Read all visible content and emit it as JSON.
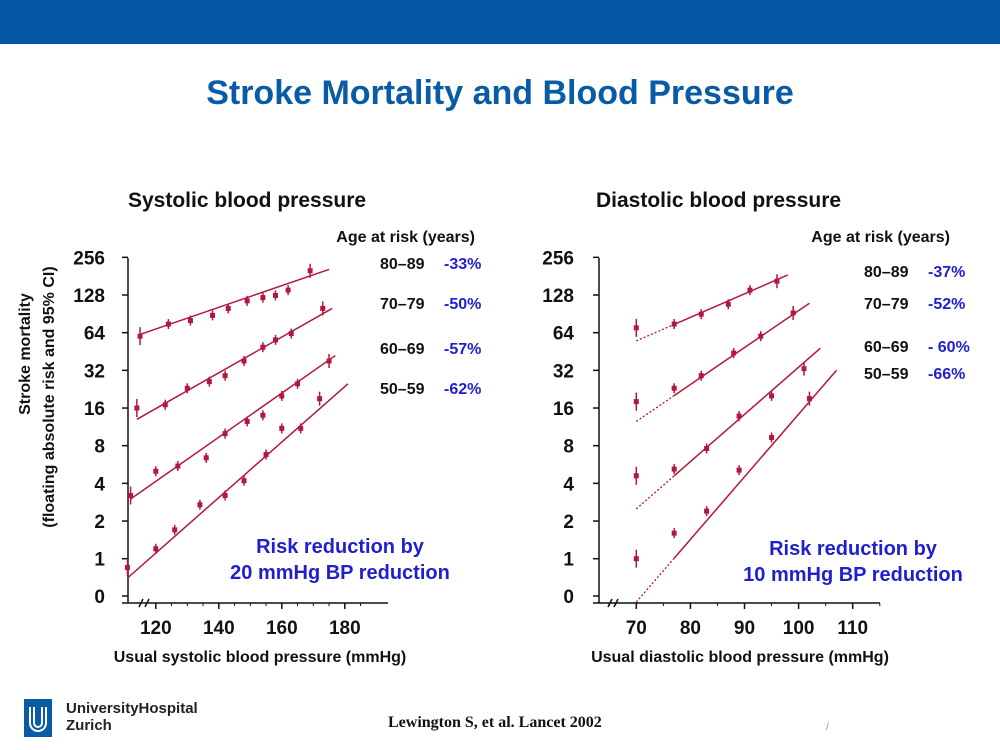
{
  "slide": {
    "title": "Stroke Mortality and Blood Pressure",
    "brand": {
      "line1": "UniversityHospital",
      "line2": "Zurich"
    },
    "citation": "Lewington S, et al. Lancet 2002",
    "page_mark": "/",
    "colors": {
      "bar": "#0557a3",
      "title": "#0a5ba5",
      "series": "#b2183b",
      "annotation": "#1f1fcf"
    }
  },
  "chart_data": [
    {
      "type": "scatter",
      "title": "Systolic blood pressure",
      "xlabel": "Usual systolic blood pressure (mmHg)",
      "ylabel": "Stroke mortality",
      "ylabel2": "(floating absolute risk and 95% CI)",
      "x_ticks": [
        120,
        140,
        160,
        180
      ],
      "xlim": [
        108,
        188
      ],
      "y_scale": "log2",
      "y_ticks": [
        256,
        128,
        64,
        32,
        16,
        8,
        4,
        2,
        1,
        0
      ],
      "legend_title": "Age at risk (years)",
      "annotation": [
        "Risk reduction by",
        "20 mmHg BP reduction"
      ],
      "series": [
        {
          "name": "80–89",
          "reduction": "-33%",
          "points": [
            [
              115,
              60
            ],
            [
              124,
              75
            ],
            [
              131,
              80
            ],
            [
              138,
              88
            ],
            [
              143,
              100
            ],
            [
              149,
              115
            ],
            [
              154,
              122
            ],
            [
              158,
              127
            ],
            [
              162,
              140
            ],
            [
              169,
              200
            ]
          ],
          "fit": [
            [
              115,
              62
            ],
            [
              175,
              205
            ]
          ]
        },
        {
          "name": "70–79",
          "reduction": "-50%",
          "points": [
            [
              114,
              16
            ],
            [
              123,
              17
            ],
            [
              130,
              23
            ],
            [
              137,
              26
            ],
            [
              142,
              29
            ],
            [
              148,
              38
            ],
            [
              154,
              49
            ],
            [
              158,
              56
            ],
            [
              163,
              63
            ],
            [
              173,
              100
            ]
          ],
          "fit": [
            [
              114,
              13
            ],
            [
              176,
              100
            ]
          ]
        },
        {
          "name": "60–69",
          "reduction": "-57%",
          "points": [
            [
              112,
              3.2
            ],
            [
              120,
              5
            ],
            [
              127,
              5.5
            ],
            [
              136,
              6.4
            ],
            [
              142,
              10
            ],
            [
              149,
              12.5
            ],
            [
              154,
              14
            ],
            [
              160,
              20
            ],
            [
              165,
              25
            ],
            [
              175,
              38
            ]
          ],
          "fit": [
            [
              112,
              3.0
            ],
            [
              177,
              42
            ]
          ]
        },
        {
          "name": "50–59",
          "reduction": "-62%",
          "points": [
            [
              111,
              0.85
            ],
            [
              120,
              1.2
            ],
            [
              126,
              1.7
            ],
            [
              134,
              2.7
            ],
            [
              142,
              3.2
            ],
            [
              148,
              4.2
            ],
            [
              155,
              6.8
            ],
            [
              160,
              11
            ],
            [
              166,
              11
            ],
            [
              172,
              19
            ]
          ],
          "fit": [
            [
              111,
              0.7
            ],
            [
              181,
              25
            ]
          ]
        }
      ]
    },
    {
      "type": "scatter",
      "title": "Diastolic blood pressure",
      "xlabel": "Usual diastolic blood pressure (mmHg)",
      "ylabel": "",
      "x_ticks": [
        70,
        80,
        90,
        100,
        110
      ],
      "xlim": [
        62,
        118
      ],
      "y_scale": "log2",
      "y_ticks": [
        256,
        128,
        64,
        32,
        16,
        8,
        4,
        2,
        1,
        0
      ],
      "legend_title": "Age at risk (years)",
      "annotation": [
        "Risk reduction by",
        "10 mmHg BP reduction"
      ],
      "series": [
        {
          "name": "80–89",
          "reduction": "-37%",
          "points": [
            [
              70,
              70
            ],
            [
              77,
              75
            ],
            [
              82,
              90
            ],
            [
              87,
              108
            ],
            [
              91,
              140
            ],
            [
              96,
              165
            ]
          ],
          "fit": [
            [
              70,
              55
            ],
            [
              98,
              185
            ]
          ]
        },
        {
          "name": "70–79",
          "reduction": "-52%",
          "points": [
            [
              70,
              18
            ],
            [
              77,
              23
            ],
            [
              82,
              29
            ],
            [
              88,
              44
            ],
            [
              93,
              60
            ],
            [
              99,
              92
            ]
          ],
          "fit": [
            [
              70,
              12.5
            ],
            [
              102,
              110
            ]
          ]
        },
        {
          "name": "60–69",
          "reduction": "- 60%",
          "points": [
            [
              70,
              4.6
            ],
            [
              77,
              5.2
            ],
            [
              83,
              7.6
            ],
            [
              89,
              13.8
            ],
            [
              95,
              20
            ],
            [
              101,
              33
            ]
          ],
          "fit": [
            [
              70,
              2.5
            ],
            [
              104,
              48
            ]
          ]
        },
        {
          "name": "50–59",
          "reduction": "-66%",
          "points": [
            [
              70,
              1
            ],
            [
              77,
              1.6
            ],
            [
              83,
              2.4
            ],
            [
              89,
              5.1
            ],
            [
              95,
              9.3
            ],
            [
              102,
              19
            ]
          ],
          "fit": [
            [
              70,
              0.45
            ],
            [
              107,
              32
            ]
          ]
        }
      ]
    }
  ]
}
